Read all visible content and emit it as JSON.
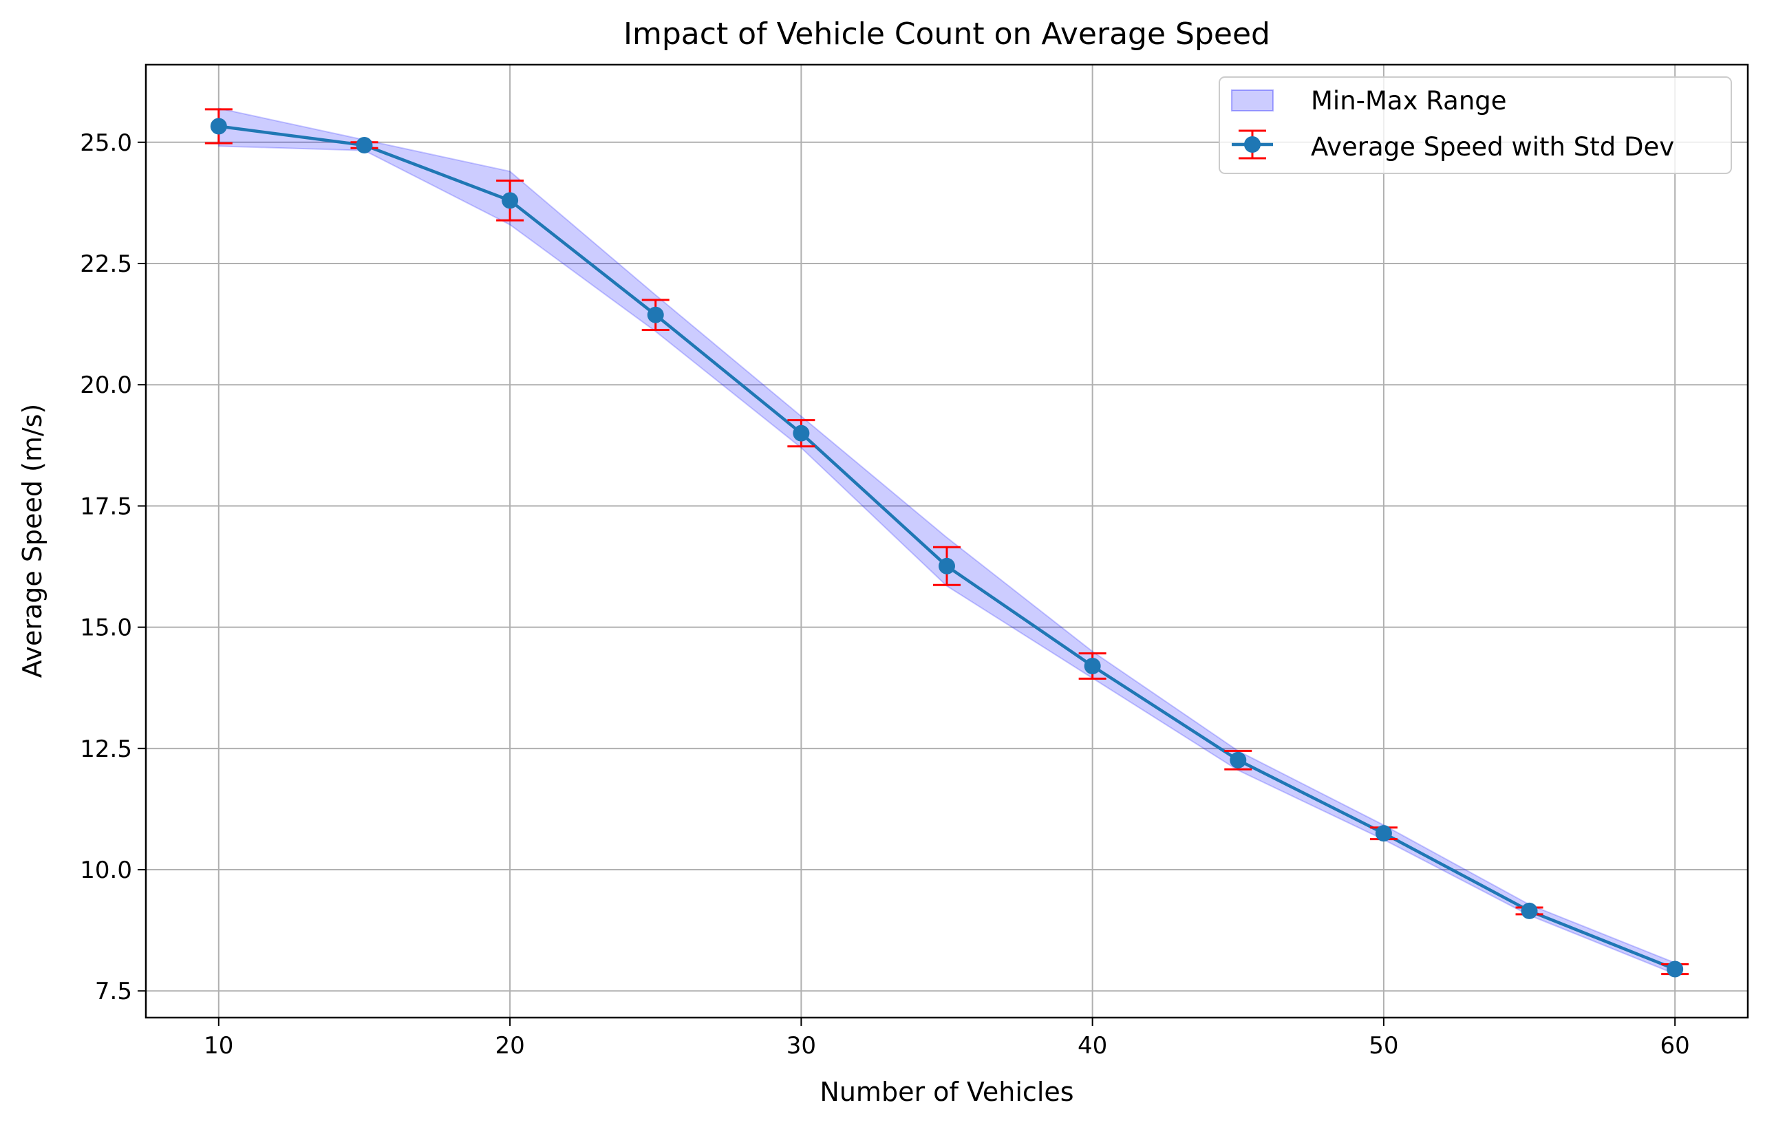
{
  "chart_data": {
    "type": "line",
    "title": "Impact of Vehicle Count on Average Speed",
    "xlabel": "Number of Vehicles",
    "ylabel": "Average Speed (m/s)",
    "xlim": [
      7.5,
      62.5
    ],
    "ylim": [
      6.95,
      26.6
    ],
    "xticks": [
      10,
      20,
      30,
      40,
      50,
      60
    ],
    "xtick_labels": [
      "10",
      "20",
      "30",
      "40",
      "50",
      "60"
    ],
    "yticks": [
      7.5,
      10.0,
      12.5,
      15.0,
      17.5,
      20.0,
      22.5,
      25.0
    ],
    "ytick_labels": [
      "7.5",
      "10.0",
      "12.5",
      "15.0",
      "17.5",
      "20.0",
      "22.5",
      "25.0"
    ],
    "grid": true,
    "legend_position": "top-right",
    "x": [
      10,
      15,
      20,
      25,
      30,
      35,
      40,
      45,
      50,
      55,
      60
    ],
    "series": [
      {
        "name": "Average Speed with Std Dev",
        "kind": "line-errorbar",
        "color": "#1f77b4",
        "errorbar_color": "#ff0000",
        "values": [
          25.33,
          24.94,
          23.8,
          21.44,
          19.0,
          16.26,
          14.2,
          12.26,
          10.75,
          9.15,
          7.95
        ],
        "std": [
          0.35,
          0.06,
          0.41,
          0.31,
          0.27,
          0.39,
          0.26,
          0.19,
          0.12,
          0.07,
          0.1
        ]
      },
      {
        "name": "Min-Max Range",
        "kind": "band",
        "color": "#0000ff",
        "opacity": 0.2,
        "lower": [
          24.92,
          24.83,
          23.3,
          21.1,
          18.7,
          15.85,
          13.95,
          12.05,
          10.62,
          9.06,
          7.85
        ],
        "upper": [
          25.7,
          25.05,
          24.4,
          21.85,
          19.35,
          16.85,
          14.5,
          12.45,
          10.92,
          9.28,
          8.08
        ]
      }
    ]
  }
}
